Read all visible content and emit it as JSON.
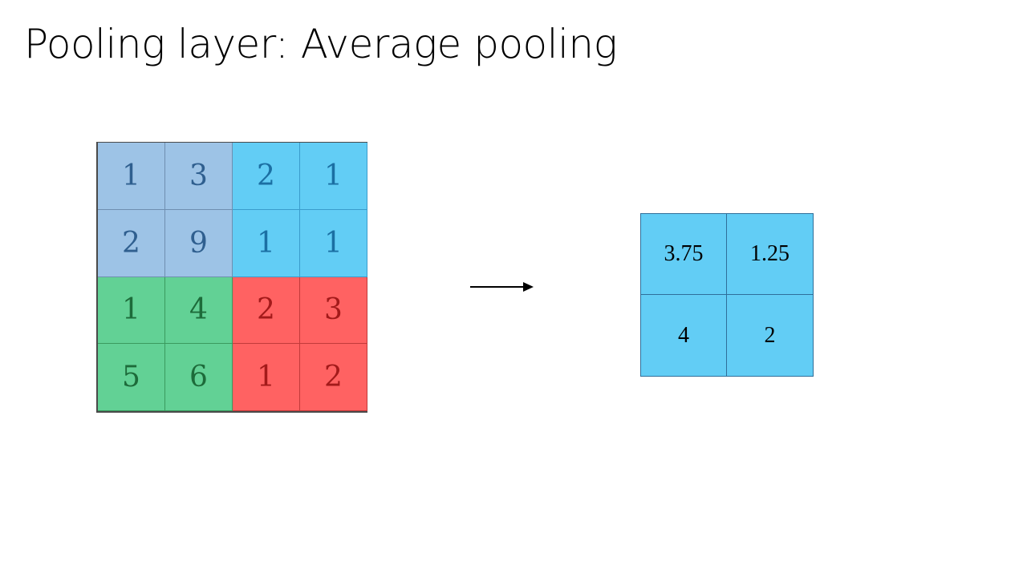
{
  "slide": {
    "title": "Pooling layer: Average pooling"
  },
  "input_matrix": {
    "rows": [
      [
        "1",
        "3",
        "2",
        "1"
      ],
      [
        "2",
        "9",
        "1",
        "1"
      ],
      [
        "1",
        "4",
        "2",
        "3"
      ],
      [
        "5",
        "6",
        "1",
        "2"
      ]
    ],
    "quadrant_colors": {
      "top_left": "#9dc3e6",
      "top_right": "#62cdf5",
      "bottom_left": "#62d195",
      "bottom_right": "#ff6262"
    }
  },
  "arrow": {
    "icon": "right-arrow-icon"
  },
  "output_matrix": {
    "rows": [
      [
        "3.75",
        "1.25"
      ],
      [
        "4",
        "2"
      ]
    ],
    "color": "#62cdf5"
  }
}
